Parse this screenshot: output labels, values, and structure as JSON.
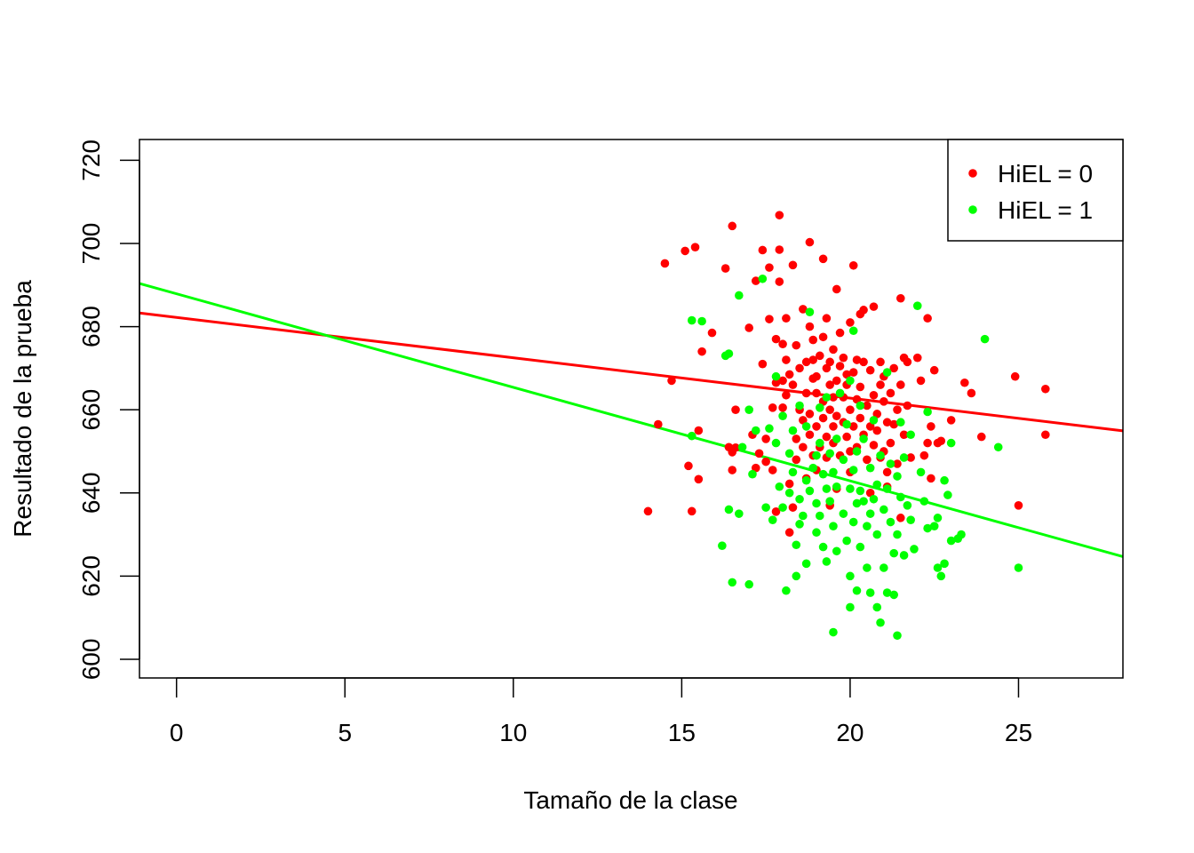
{
  "chart_data": {
    "type": "scatter",
    "title": "",
    "xlabel": "Tamaño de la clase",
    "ylabel": "Resultado de la prueba",
    "xlim": [
      -1.1,
      28.1
    ],
    "ylim": [
      595.5,
      725
    ],
    "x_ticks": [
      "0",
      "5",
      "10",
      "15",
      "20",
      "25"
    ],
    "y_ticks": [
      "600",
      "620",
      "640",
      "660",
      "680",
      "700",
      "720"
    ],
    "grid": false,
    "legend_position": "top-right",
    "series": [
      {
        "name": "HiEL = 0",
        "color": "#ff0000",
        "regression": {
          "intercept": 682.2,
          "slope": -0.97
        },
        "points": [
          [
            14.0,
            635.6
          ],
          [
            14.3,
            656.5
          ],
          [
            14.5,
            695.2
          ],
          [
            14.7,
            667.0
          ],
          [
            15.1,
            698.2
          ],
          [
            15.2,
            646.5
          ],
          [
            15.3,
            635.6
          ],
          [
            15.4,
            699.1
          ],
          [
            15.5,
            643.3
          ],
          [
            15.5,
            655.0
          ],
          [
            15.6,
            674.0
          ],
          [
            15.9,
            678.5
          ],
          [
            16.3,
            694.0
          ],
          [
            16.4,
            651.0
          ],
          [
            16.5,
            649.8
          ],
          [
            16.5,
            645.5
          ],
          [
            16.5,
            704.2
          ],
          [
            16.6,
            660.0
          ],
          [
            16.6,
            650.9
          ],
          [
            17.0,
            679.7
          ],
          [
            17.1,
            654.0
          ],
          [
            17.2,
            646.0
          ],
          [
            17.2,
            691.0
          ],
          [
            17.3,
            649.5
          ],
          [
            17.4,
            698.4
          ],
          [
            17.4,
            671.0
          ],
          [
            17.5,
            653.0
          ],
          [
            17.5,
            647.5
          ],
          [
            17.6,
            694.2
          ],
          [
            17.6,
            681.8
          ],
          [
            17.7,
            660.5
          ],
          [
            17.7,
            645.5
          ],
          [
            17.8,
            635.5
          ],
          [
            17.8,
            666.5
          ],
          [
            17.8,
            677.0
          ],
          [
            17.9,
            698.5
          ],
          [
            17.9,
            690.8
          ],
          [
            17.9,
            706.8
          ],
          [
            18.0,
            667.0
          ],
          [
            18.0,
            660.5
          ],
          [
            18.0,
            675.8
          ],
          [
            18.1,
            672.0
          ],
          [
            18.1,
            663.5
          ],
          [
            18.1,
            682.0
          ],
          [
            18.2,
            642.2
          ],
          [
            18.2,
            668.5
          ],
          [
            18.2,
            630.5
          ],
          [
            18.3,
            636.5
          ],
          [
            18.3,
            666.0
          ],
          [
            18.3,
            694.8
          ],
          [
            18.4,
            653.0
          ],
          [
            18.4,
            648.0
          ],
          [
            18.4,
            675.5
          ],
          [
            18.5,
            660.0
          ],
          [
            18.5,
            670.0
          ],
          [
            18.6,
            657.5
          ],
          [
            18.6,
            651.0
          ],
          [
            18.6,
            684.2
          ],
          [
            18.7,
            671.5
          ],
          [
            18.7,
            664.0
          ],
          [
            18.7,
            643.5
          ],
          [
            18.8,
            659.0
          ],
          [
            18.8,
            680.0
          ],
          [
            18.8,
            654.0
          ],
          [
            18.8,
            700.3
          ],
          [
            18.9,
            672.0
          ],
          [
            18.9,
            667.5
          ],
          [
            18.9,
            649.0
          ],
          [
            18.9,
            676.8
          ],
          [
            19.0,
            664.0
          ],
          [
            19.0,
            656.0
          ],
          [
            19.0,
            645.5
          ],
          [
            19.0,
            668.0
          ],
          [
            19.1,
            651.0
          ],
          [
            19.1,
            673.0
          ],
          [
            19.2,
            658.0
          ],
          [
            19.2,
            696.3
          ],
          [
            19.2,
            662.0
          ],
          [
            19.2,
            677.5
          ],
          [
            19.3,
            670.0
          ],
          [
            19.3,
            653.5
          ],
          [
            19.3,
            648.5
          ],
          [
            19.3,
            682.0
          ],
          [
            19.4,
            666.0
          ],
          [
            19.4,
            660.0
          ],
          [
            19.4,
            637.0
          ],
          [
            19.4,
            671.5
          ],
          [
            19.5,
            656.0
          ],
          [
            19.5,
            674.5
          ],
          [
            19.5,
            663.0
          ],
          [
            19.5,
            652.0
          ],
          [
            19.6,
            667.0
          ],
          [
            19.6,
            689.0
          ],
          [
            19.6,
            658.5
          ],
          [
            19.6,
            641.0
          ],
          [
            19.7,
            670.5
          ],
          [
            19.7,
            678.5
          ],
          [
            19.7,
            649.0
          ],
          [
            19.8,
            663.0
          ],
          [
            19.8,
            657.0
          ],
          [
            19.8,
            672.5
          ],
          [
            19.9,
            653.5
          ],
          [
            19.9,
            666.0
          ],
          [
            19.9,
            668.5
          ],
          [
            20.0,
            660.0
          ],
          [
            20.0,
            650.0
          ],
          [
            20.0,
            681.0
          ],
          [
            20.0,
            645.0
          ],
          [
            20.1,
            669.0
          ],
          [
            20.1,
            656.0
          ],
          [
            20.1,
            694.7
          ],
          [
            20.2,
            662.5
          ],
          [
            20.2,
            651.0
          ],
          [
            20.2,
            672.0
          ],
          [
            20.3,
            683.0
          ],
          [
            20.3,
            658.0
          ],
          [
            20.3,
            665.5
          ],
          [
            20.4,
            671.5
          ],
          [
            20.4,
            684.0
          ],
          [
            20.4,
            654.0
          ],
          [
            20.5,
            661.0
          ],
          [
            20.5,
            648.0
          ],
          [
            20.6,
            669.5
          ],
          [
            20.6,
            656.0
          ],
          [
            20.6,
            640.0
          ],
          [
            20.7,
            684.8
          ],
          [
            20.7,
            663.5
          ],
          [
            20.7,
            651.5
          ],
          [
            20.8,
            659.0
          ],
          [
            20.8,
            655.0
          ],
          [
            20.9,
            671.5
          ],
          [
            20.9,
            648.5
          ],
          [
            20.9,
            666.0
          ],
          [
            21.0,
            662.0
          ],
          [
            21.0,
            650.0
          ],
          [
            21.0,
            668.0
          ],
          [
            21.1,
            657.0
          ],
          [
            21.1,
            641.5
          ],
          [
            21.1,
            645.0
          ],
          [
            21.2,
            664.0
          ],
          [
            21.2,
            652.0
          ],
          [
            21.3,
            670.0
          ],
          [
            21.3,
            656.5
          ],
          [
            21.4,
            660.0
          ],
          [
            21.4,
            647.0
          ],
          [
            21.5,
            686.8
          ],
          [
            21.5,
            666.0
          ],
          [
            21.5,
            634.0
          ],
          [
            21.6,
            672.5
          ],
          [
            21.6,
            654.0
          ],
          [
            21.7,
            671.5
          ],
          [
            21.7,
            661.0
          ],
          [
            21.8,
            648.5
          ],
          [
            22.0,
            672.5
          ],
          [
            22.1,
            667.0
          ],
          [
            22.2,
            649.0
          ],
          [
            22.3,
            652.0
          ],
          [
            22.3,
            682.0
          ],
          [
            22.4,
            656.0
          ],
          [
            22.4,
            643.5
          ],
          [
            22.5,
            669.5
          ],
          [
            22.6,
            652.0
          ],
          [
            22.7,
            652.5
          ],
          [
            23.0,
            657.5
          ],
          [
            23.4,
            666.5
          ],
          [
            23.6,
            664.0
          ],
          [
            23.9,
            653.5
          ],
          [
            24.9,
            668.0
          ],
          [
            25.0,
            637.0
          ],
          [
            25.8,
            665.0
          ],
          [
            25.8,
            654.0
          ]
        ]
      },
      {
        "name": "HiEL = 1",
        "color": "#00ff00",
        "regression": {
          "intercept": 687.9,
          "slope": -2.25
        },
        "points": [
          [
            15.3,
            681.5
          ],
          [
            15.3,
            653.7
          ],
          [
            15.6,
            681.3
          ],
          [
            16.2,
            627.3
          ],
          [
            16.3,
            673.0
          ],
          [
            16.4,
            636.0
          ],
          [
            16.4,
            673.5
          ],
          [
            16.5,
            618.5
          ],
          [
            16.7,
            687.5
          ],
          [
            16.7,
            635.0
          ],
          [
            16.8,
            651.0
          ],
          [
            17.0,
            618.0
          ],
          [
            17.0,
            660.0
          ],
          [
            17.1,
            644.5
          ],
          [
            17.2,
            655.0
          ],
          [
            17.4,
            691.5
          ],
          [
            17.5,
            636.5
          ],
          [
            17.6,
            655.5
          ],
          [
            17.7,
            633.5
          ],
          [
            17.8,
            668.0
          ],
          [
            17.8,
            652.0
          ],
          [
            17.9,
            641.5
          ],
          [
            18.0,
            658.5
          ],
          [
            18.0,
            636.5
          ],
          [
            18.1,
            616.5
          ],
          [
            18.2,
            649.5
          ],
          [
            18.2,
            640.0
          ],
          [
            18.3,
            655.0
          ],
          [
            18.3,
            645.0
          ],
          [
            18.4,
            627.5
          ],
          [
            18.4,
            620.0
          ],
          [
            18.5,
            661.0
          ],
          [
            18.5,
            638.5
          ],
          [
            18.5,
            632.5
          ],
          [
            18.6,
            634.5
          ],
          [
            18.7,
            656.0
          ],
          [
            18.7,
            643.0
          ],
          [
            18.7,
            623.0
          ],
          [
            18.8,
            640.5
          ],
          [
            18.8,
            683.5
          ],
          [
            18.9,
            646.0
          ],
          [
            19.0,
            649.0
          ],
          [
            19.0,
            637.5
          ],
          [
            19.0,
            630.5
          ],
          [
            19.1,
            660.5
          ],
          [
            19.1,
            652.0
          ],
          [
            19.1,
            634.5
          ],
          [
            19.2,
            644.5
          ],
          [
            19.2,
            627.0
          ],
          [
            19.3,
            663.0
          ],
          [
            19.3,
            641.0
          ],
          [
            19.3,
            623.5
          ],
          [
            19.4,
            649.5
          ],
          [
            19.4,
            638.0
          ],
          [
            19.5,
            606.5
          ],
          [
            19.5,
            645.0
          ],
          [
            19.5,
            632.0
          ],
          [
            19.6,
            653.0
          ],
          [
            19.6,
            641.5
          ],
          [
            19.6,
            626.0
          ],
          [
            19.7,
            664.0
          ],
          [
            19.8,
            648.0
          ],
          [
            19.8,
            635.0
          ],
          [
            19.9,
            628.5
          ],
          [
            19.9,
            656.5
          ],
          [
            20.0,
            641.0
          ],
          [
            20.0,
            620.0
          ],
          [
            20.0,
            612.5
          ],
          [
            20.0,
            667.0
          ],
          [
            20.1,
            645.5
          ],
          [
            20.1,
            633.0
          ],
          [
            20.1,
            679.0
          ],
          [
            20.2,
            650.0
          ],
          [
            20.2,
            637.5
          ],
          [
            20.2,
            616.5
          ],
          [
            20.3,
            661.0
          ],
          [
            20.3,
            640.5
          ],
          [
            20.3,
            627.0
          ],
          [
            20.4,
            653.0
          ],
          [
            20.4,
            638.0
          ],
          [
            20.5,
            632.0
          ],
          [
            20.5,
            622.0
          ],
          [
            20.6,
            646.0
          ],
          [
            20.6,
            635.0
          ],
          [
            20.6,
            616.0
          ],
          [
            20.7,
            657.5
          ],
          [
            20.7,
            638.5
          ],
          [
            20.8,
            642.0
          ],
          [
            20.8,
            630.0
          ],
          [
            20.8,
            612.5
          ],
          [
            20.9,
            608.8
          ],
          [
            20.9,
            649.0
          ],
          [
            21.0,
            636.0
          ],
          [
            21.0,
            622.0
          ],
          [
            21.1,
            669.0
          ],
          [
            21.1,
            641.0
          ],
          [
            21.1,
            616.0
          ],
          [
            21.2,
            647.0
          ],
          [
            21.2,
            633.0
          ],
          [
            21.3,
            625.5
          ],
          [
            21.3,
            615.5
          ],
          [
            21.4,
            644.0
          ],
          [
            21.4,
            630.0
          ],
          [
            21.4,
            605.7
          ],
          [
            21.5,
            657.0
          ],
          [
            21.5,
            639.0
          ],
          [
            21.6,
            625.0
          ],
          [
            21.6,
            648.5
          ],
          [
            21.7,
            637.0
          ],
          [
            21.8,
            654.0
          ],
          [
            21.8,
            633.5
          ],
          [
            21.9,
            626.5
          ],
          [
            22.0,
            685.0
          ],
          [
            22.1,
            645.0
          ],
          [
            22.2,
            638.0
          ],
          [
            22.3,
            631.5
          ],
          [
            22.3,
            659.5
          ],
          [
            22.5,
            632.0
          ],
          [
            22.6,
            622.0
          ],
          [
            22.6,
            634.0
          ],
          [
            22.7,
            620.0
          ],
          [
            22.8,
            643.0
          ],
          [
            22.8,
            623.0
          ],
          [
            22.9,
            639.5
          ],
          [
            23.0,
            652.0
          ],
          [
            23.0,
            628.5
          ],
          [
            23.2,
            629.0
          ],
          [
            23.3,
            630.0
          ],
          [
            24.0,
            677.0
          ],
          [
            24.4,
            651.0
          ],
          [
            25.0,
            622.0
          ]
        ]
      }
    ]
  }
}
